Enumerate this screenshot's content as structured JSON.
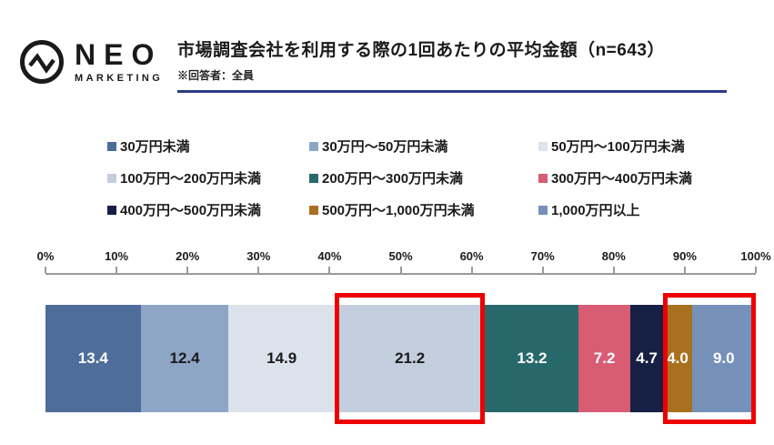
{
  "logo": {
    "brand": "NEO",
    "subbrand": "MARKETING"
  },
  "header": {
    "title": "市場調査会社を利用する際の1回あたりの平均金額（n=643）",
    "note": "※回答者：全員"
  },
  "chart_data": {
    "type": "bar",
    "variant": "stacked-horizontal",
    "title": "市場調査会社を利用する際の1回あたりの平均金額",
    "sample_label": "n=643",
    "unit": "%",
    "xlim": [
      0,
      100
    ],
    "grid": false,
    "legend_position": "top",
    "x_ticks": [
      "0%",
      "10%",
      "20%",
      "30%",
      "40%",
      "50%",
      "60%",
      "70%",
      "80%",
      "90%",
      "100%"
    ],
    "segments": [
      {
        "label": "30万円未満",
        "value": 13.4,
        "color": "#4e6d9b",
        "text_color": "#ffffff"
      },
      {
        "label": "30万円～50万円未満",
        "value": 12.4,
        "color": "#8ea6c6",
        "text_color": "#1a1a1a"
      },
      {
        "label": "50万円～100万円未満",
        "value": 14.9,
        "color": "#dde3ec",
        "text_color": "#1a1a1a"
      },
      {
        "label": "100万円～200万円未満",
        "value": 21.2,
        "color": "#c3cede",
        "text_color": "#1a1a1a"
      },
      {
        "label": "200万円～300万円未満",
        "value": 13.2,
        "color": "#27696a",
        "text_color": "#ffffff"
      },
      {
        "label": "300万円～400万円未満",
        "value": 7.2,
        "color": "#d85c74",
        "text_color": "#ffffff"
      },
      {
        "label": "400万円～500万円未満",
        "value": 4.7,
        "color": "#161f44",
        "text_color": "#ffffff"
      },
      {
        "label": "500万円～1,000万円未満",
        "value": 4.0,
        "color": "#a9701e",
        "text_color": "#ffffff"
      },
      {
        "label": "1,000万円以上",
        "value": 9.0,
        "color": "#7591ba",
        "text_color": "#ffffff"
      }
    ],
    "highlights": [
      {
        "from_index": 3,
        "to_index": 3,
        "color": "#ee0000"
      },
      {
        "from_index": 7,
        "to_index": 8,
        "color": "#ee0000"
      }
    ]
  }
}
